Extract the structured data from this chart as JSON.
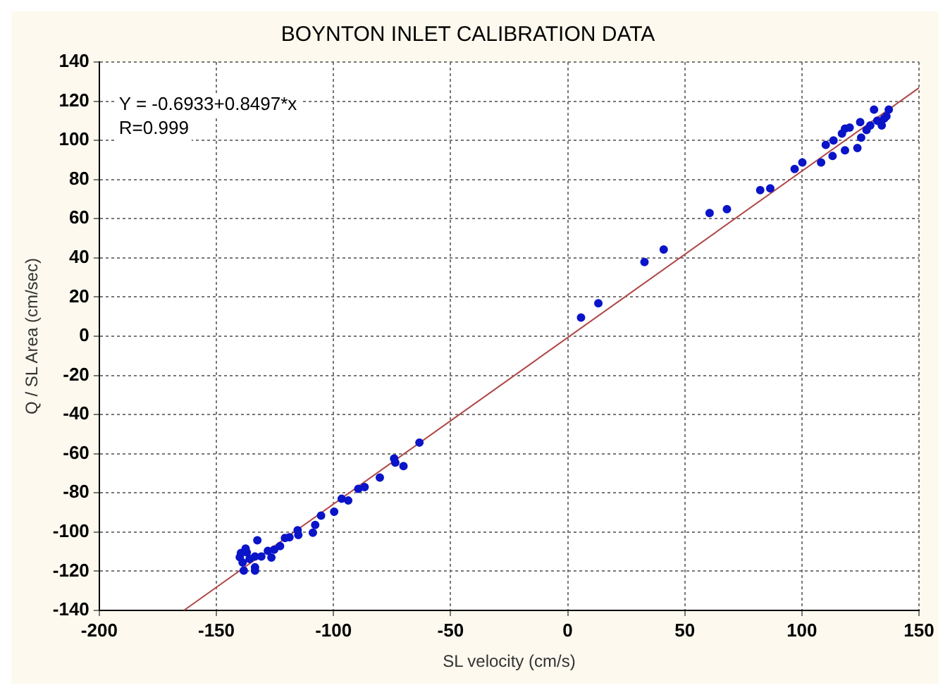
{
  "chart_data": {
    "type": "scatter",
    "title": "BOYNTON INLET CALIBRATION DATA",
    "xlabel": "SL velocity (cm/s)",
    "ylabel": "Q / SL Area (cm/sec)",
    "annotations": [
      "Y = -0.6933+0.8497*x",
      "R=0.999"
    ],
    "series": [
      {
        "type": "scatter",
        "color": "#0a14c8",
        "marker": "circle",
        "x": [
          -63.3,
          -74.1,
          -73.6,
          -70.1,
          -80.2,
          -86.7,
          -89.4,
          -93.7,
          -96.5,
          -99.7,
          -105.3,
          -107.8,
          -108.8,
          -115.3,
          -115,
          -118.8,
          -120.7,
          -122.8,
          -125.3,
          -126.5,
          -128,
          -130.8,
          -132.5,
          -133.5,
          -133.5,
          -133.5,
          -137,
          -138.3,
          -139.5,
          -140,
          -138.8,
          -135.8,
          -137.5,
          5.7,
          13.1,
          32.8,
          41,
          60.6,
          68,
          82.2,
          86.5,
          96.9,
          100.2,
          108.2,
          110.2,
          113.1,
          113.5,
          118.4,
          117.1,
          118.4,
          120.4,
          123.7,
          125.3,
          124.9,
          127.6,
          130.8,
          132.2,
          134.1,
          136.1,
          137.1,
          135.1,
          129.2
        ],
        "values": [
          -54.3,
          -62.4,
          -64.5,
          -66.3,
          -72.2,
          -77,
          -77.9,
          -83.9,
          -83,
          -89.6,
          -91.6,
          -96.4,
          -100.3,
          -99.1,
          -101.5,
          -102.7,
          -103,
          -107.2,
          -109,
          -113,
          -109.6,
          -112.5,
          -104.2,
          -112.5,
          -118,
          -119.7,
          -110.4,
          -119.7,
          -110.7,
          -112.8,
          -115.5,
          -113.7,
          -108.4,
          9.5,
          16.8,
          37.9,
          44.3,
          62.9,
          64.9,
          74.6,
          75.5,
          85.4,
          88.7,
          88.7,
          97.7,
          92,
          100,
          94.9,
          103.5,
          106,
          106.5,
          96.1,
          101.4,
          109.3,
          105.3,
          115.7,
          110,
          107.6,
          112.3,
          115.7,
          111.1,
          107.6
        ]
      },
      {
        "type": "line",
        "color": "#b04848",
        "marker": "none",
        "line_style": "solid",
        "x": [
          -163.9,
          150
        ],
        "values": [
          -140,
          126.8
        ]
      }
    ],
    "xlim": [
      -200,
      150
    ],
    "xticks": [
      -200,
      -150,
      -100,
      -50,
      0,
      50,
      100,
      150
    ],
    "ylim": [
      -140,
      140
    ],
    "yticks": [
      -140,
      -120,
      -100,
      -80,
      -60,
      -40,
      -20,
      0,
      20,
      40,
      60,
      80,
      100,
      120,
      140
    ],
    "grid": true,
    "legend": false
  }
}
